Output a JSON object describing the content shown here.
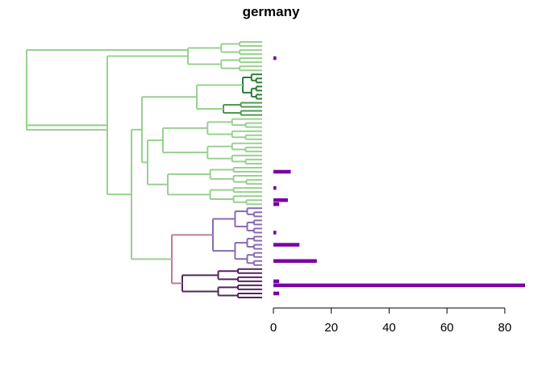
{
  "chart_data": {
    "type": "bar",
    "title": "germany",
    "orientation": "horizontal",
    "xlabel": "",
    "ylabel": "",
    "xlim": [
      0,
      87
    ],
    "xticks": [
      0,
      20,
      40,
      60,
      80
    ],
    "grid": false,
    "bar_color": "#7a00a5",
    "dendrogram_colors": {
      "light_green": "#98d18f",
      "dark_green": "#2e7d3a",
      "mid_green": "#4f9a4f",
      "purple": "#8a6ab0",
      "dark_purple": "#55245e",
      "mauve": "#c07a9a"
    },
    "leaf_count": 64,
    "bars": [
      {
        "leaf": 4,
        "value": 1
      },
      {
        "leaf": 32,
        "value": 6
      },
      {
        "leaf": 36,
        "value": 1
      },
      {
        "leaf": 39,
        "value": 5
      },
      {
        "leaf": 40,
        "value": 2
      },
      {
        "leaf": 47,
        "value": 1
      },
      {
        "leaf": 50,
        "value": 9
      },
      {
        "leaf": 54,
        "value": 15
      },
      {
        "leaf": 59,
        "value": 2
      },
      {
        "leaf": 60,
        "value": 87
      },
      {
        "leaf": 62,
        "value": 2
      }
    ]
  }
}
